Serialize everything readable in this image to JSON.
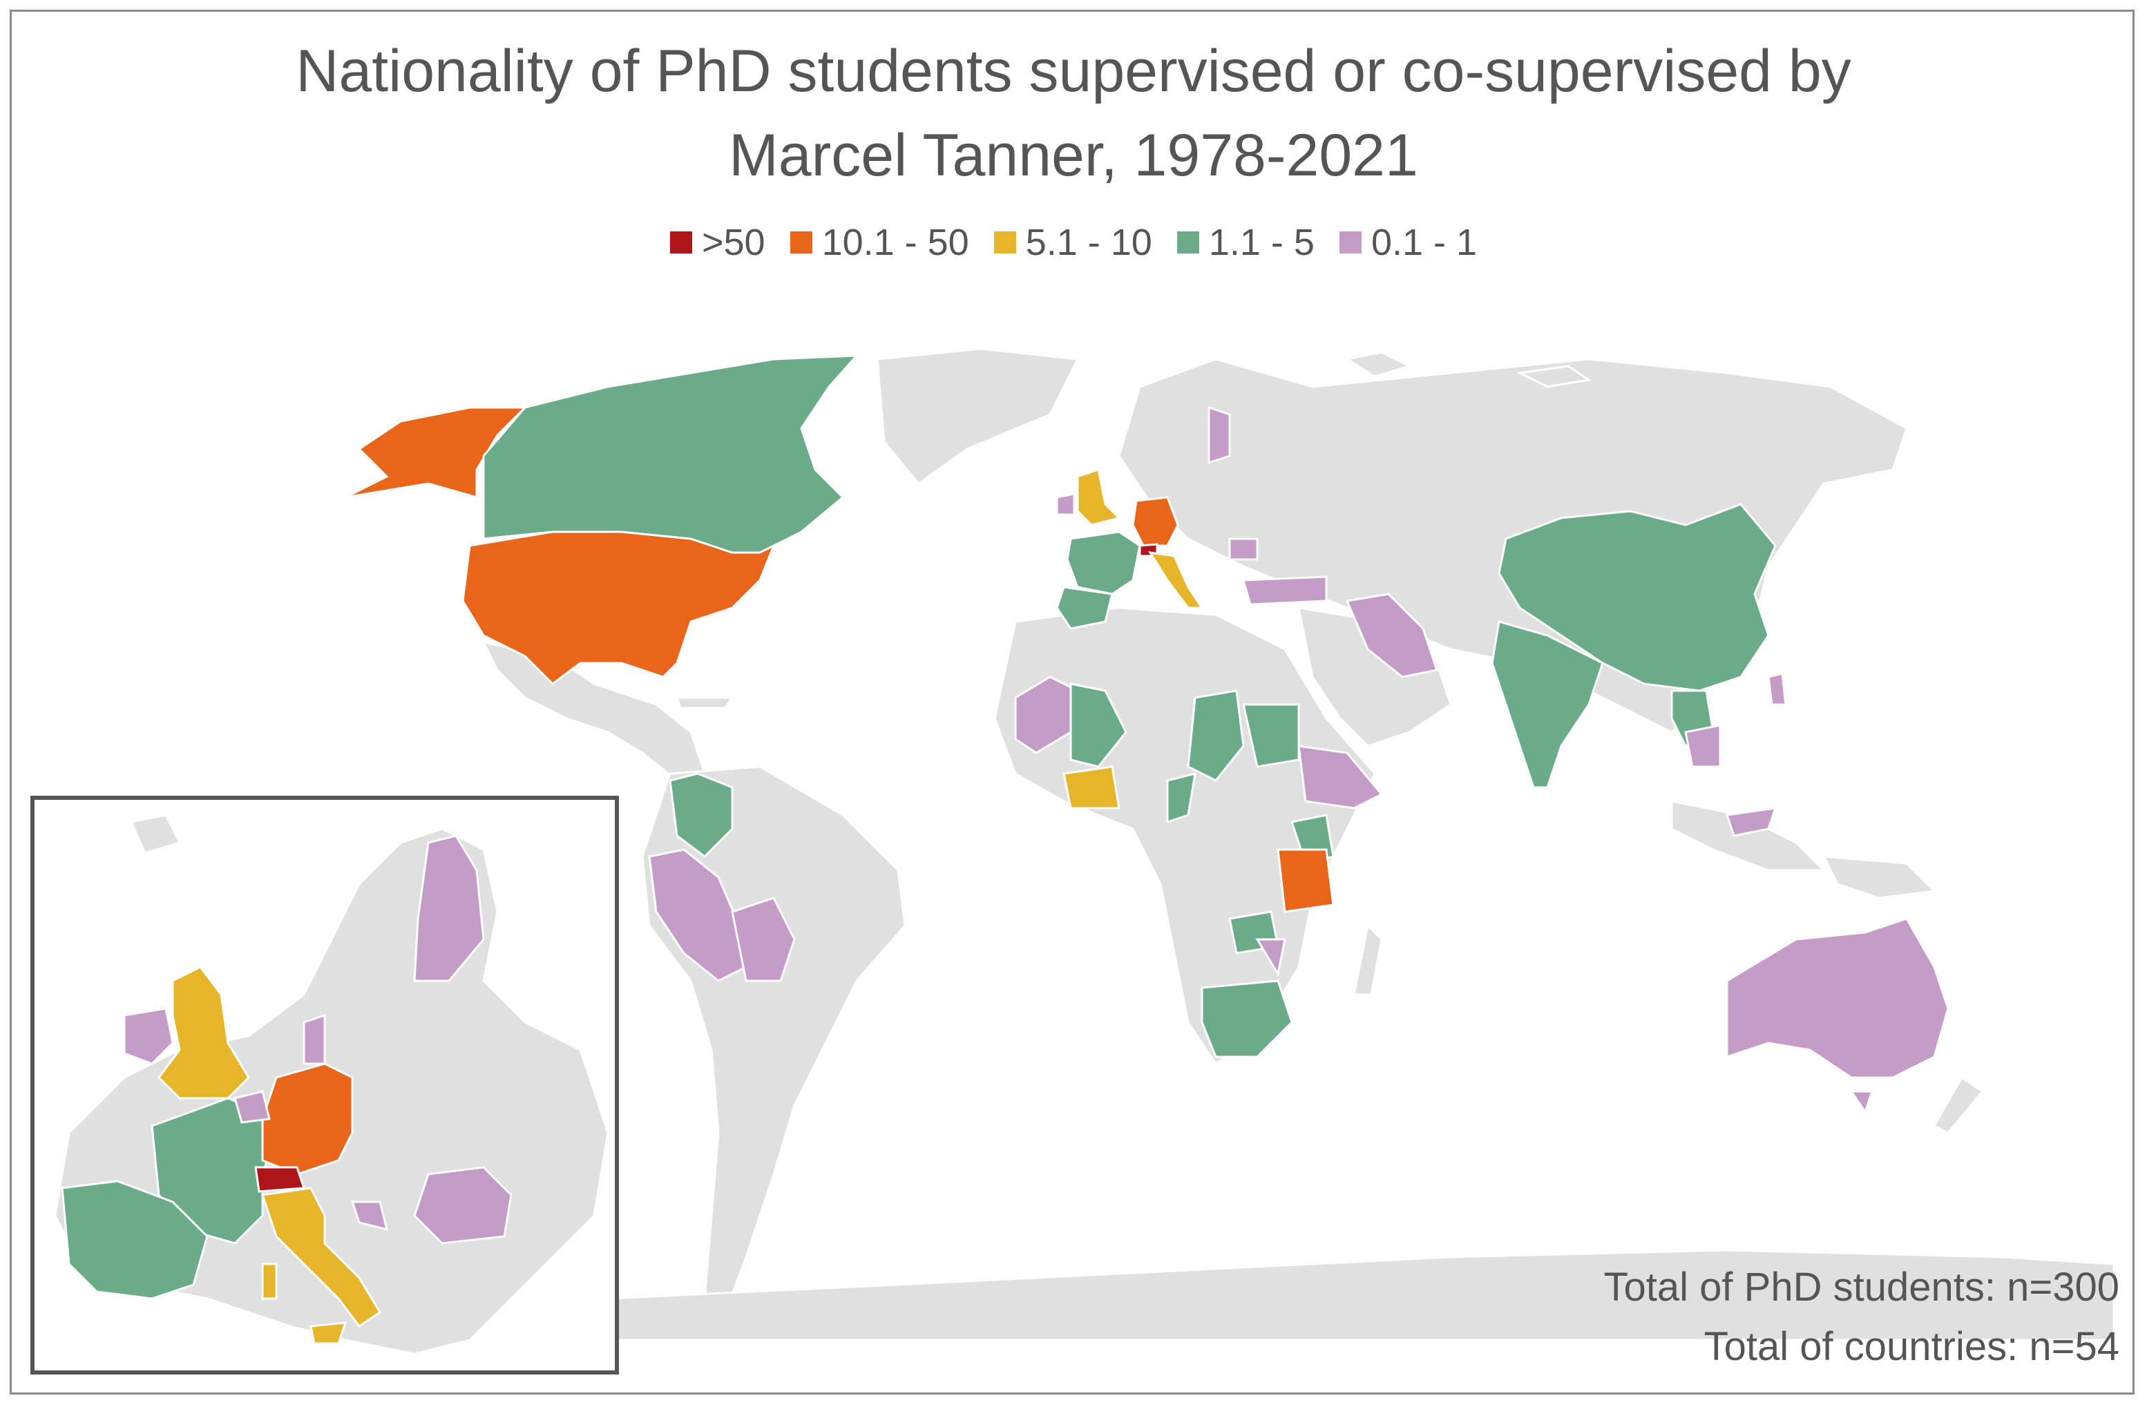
{
  "title_line1": "Nationality of PhD students supervised or co-supervised by",
  "title_line2": "Marcel Tanner, 1978-2021",
  "legend": [
    {
      "label": ">50",
      "color": "#b0151b"
    },
    {
      "label": "10.1 - 50",
      "color": "#e8651a"
    },
    {
      "label": "5.1 - 10",
      "color": "#e6b52a"
    },
    {
      "label": "1.1 - 5",
      "color": "#6aab8a"
    },
    {
      "label": "0.1 - 1",
      "color": "#c59bc7"
    }
  ],
  "base_land_color": "#e0e0e0",
  "total_students": "Total of PhD students: n=300",
  "total_countries": "Total of countries: n=54",
  "countries": [
    {
      "name": "Switzerland",
      "class": ">50"
    },
    {
      "name": "United States",
      "class": "10.1 - 50"
    },
    {
      "name": "Germany",
      "class": "10.1 - 50"
    },
    {
      "name": "Tanzania",
      "class": "10.1 - 50"
    },
    {
      "name": "United Kingdom",
      "class": "5.1 - 10"
    },
    {
      "name": "Italy",
      "class": "5.1 - 10"
    },
    {
      "name": "Côte d'Ivoire",
      "class": "5.1 - 10"
    },
    {
      "name": "Canada",
      "class": "1.1 - 5"
    },
    {
      "name": "France",
      "class": "1.1 - 5"
    },
    {
      "name": "Spain",
      "class": "1.1 - 5"
    },
    {
      "name": "China",
      "class": "1.1 - 5"
    },
    {
      "name": "India",
      "class": "1.1 - 5"
    },
    {
      "name": "Colombia",
      "class": "1.1 - 5"
    },
    {
      "name": "South Africa",
      "class": "1.1 - 5"
    },
    {
      "name": "Chad",
      "class": "1.1 - 5"
    },
    {
      "name": "Mali",
      "class": "1.1 - 5"
    },
    {
      "name": "Kenya",
      "class": "1.1 - 5"
    },
    {
      "name": "Zimbabwe",
      "class": "1.1 - 5"
    },
    {
      "name": "Australia",
      "class": "0.1 - 1"
    },
    {
      "name": "Finland",
      "class": "0.1 - 1"
    },
    {
      "name": "Romania",
      "class": "0.1 - 1"
    },
    {
      "name": "Ireland",
      "class": "0.1 - 1"
    },
    {
      "name": "Peru",
      "class": "0.1 - 1"
    },
    {
      "name": "Bolivia",
      "class": "0.1 - 1"
    },
    {
      "name": "Iran",
      "class": "0.1 - 1"
    },
    {
      "name": "Turkey",
      "class": "0.1 - 1"
    },
    {
      "name": "Ethiopia",
      "class": "0.1 - 1"
    }
  ]
}
